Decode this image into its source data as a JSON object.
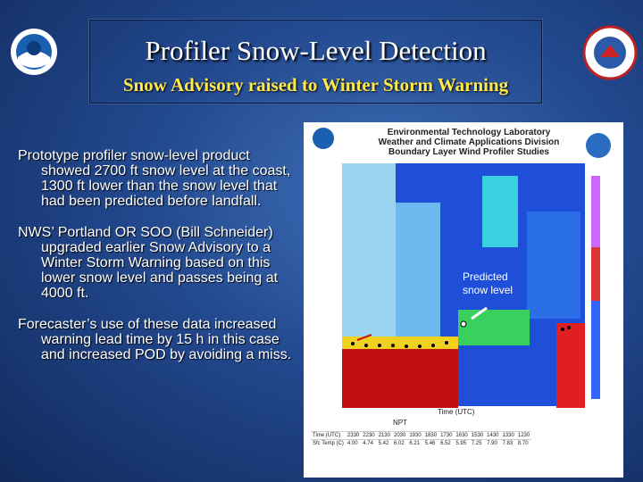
{
  "header": {
    "title": "Profiler Snow-Level Detection",
    "subtitle": "Snow Advisory raised to Winter Storm Warning"
  },
  "bullets": [
    "Prototype profiler snow-level product showed 2700 ft snow level at the coast, 1300 ft lower than the snow level that had been predicted before landfall.",
    "NWS’ Portland OR SOO (Bill Schneider) upgraded earlier Snow Advisory to a Winter Storm Warning based on this lower snow level and passes being at 4000 ft.",
    "Forecaster’s use of these data increased warning lead time by 15 h in this case and increased POD by avoiding a miss."
  ],
  "figure": {
    "heading": [
      "Environmental Technology Laboratory",
      "Weather and Climate Applications Division",
      "Boundary Layer Wind Profiler Studies"
    ],
    "annotation": "Predicted snow level",
    "x_axis_label": "Time (UTC)",
    "station": "NPT",
    "table": {
      "rows": [
        [
          "Time (UTC)",
          "2330",
          "2230",
          "2130",
          "2030",
          "1930",
          "1830",
          "1730",
          "1630",
          "1530",
          "1430",
          "1330",
          "1230"
        ],
        [
          "Sfc Temp (C)",
          "4.00",
          "4.74",
          "5.42",
          "6.02",
          "6.21",
          "5.46",
          "6.52",
          "5.95",
          "7.25",
          "7.90",
          "7.83",
          "8.70"
        ]
      ]
    }
  }
}
